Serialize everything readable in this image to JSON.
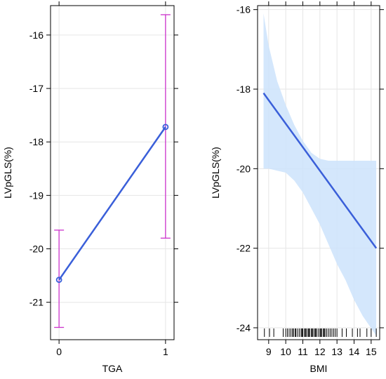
{
  "chart_data": [
    {
      "type": "line",
      "xlabel": "TGA",
      "ylabel": "LVpGLS(%)",
      "x_ticks": [
        "0",
        "1"
      ],
      "y_ticks": [
        "-16",
        "-17",
        "-18",
        "-19",
        "-20",
        "-21"
      ],
      "ylim": [
        -21.7,
        -15.45
      ],
      "grid": true,
      "points": [
        {
          "x": 0,
          "y": -20.58,
          "lower": -21.47,
          "upper": -19.65
        },
        {
          "x": 1,
          "y": -17.72,
          "lower": -19.8,
          "upper": -15.62
        }
      ],
      "colors": {
        "line": "#3a5fd9",
        "errorbar": "#cc33cc"
      }
    },
    {
      "type": "line",
      "xlabel": "BMI",
      "ylabel": "LVpGLS(%)",
      "x_ticks": [
        "9",
        "10",
        "11",
        "12",
        "13",
        "14",
        "15"
      ],
      "y_ticks": [
        "-16",
        "-18",
        "-20",
        "-22",
        "-24"
      ],
      "xlim": [
        8.35,
        15.5
      ],
      "ylim": [
        -24.3,
        -15.9
      ],
      "grid": true,
      "fit": {
        "x": [
          8.7,
          15.3
        ],
        "y": [
          -18.1,
          -22.0
        ]
      },
      "band_upper": [
        [
          8.7,
          -16.1
        ],
        [
          9.0,
          -16.9
        ],
        [
          9.5,
          -17.8
        ],
        [
          10.0,
          -18.4
        ],
        [
          10.5,
          -18.9
        ],
        [
          11.0,
          -19.3
        ],
        [
          11.5,
          -19.6
        ],
        [
          12.0,
          -19.75
        ],
        [
          12.5,
          -19.8
        ],
        [
          13.0,
          -19.8
        ],
        [
          13.5,
          -19.8
        ],
        [
          14.0,
          -19.8
        ],
        [
          14.5,
          -19.8
        ],
        [
          15.3,
          -19.8
        ]
      ],
      "band_lower": [
        [
          8.7,
          -20.0
        ],
        [
          9.0,
          -20.0
        ],
        [
          9.5,
          -20.05
        ],
        [
          10.0,
          -20.1
        ],
        [
          10.5,
          -20.3
        ],
        [
          11.0,
          -20.6
        ],
        [
          11.5,
          -21.0
        ],
        [
          12.0,
          -21.4
        ],
        [
          12.5,
          -21.9
        ],
        [
          13.0,
          -22.4
        ],
        [
          13.5,
          -22.8
        ],
        [
          14.0,
          -23.3
        ],
        [
          14.5,
          -23.7
        ],
        [
          15.3,
          -24.2
        ]
      ],
      "rug": [
        8.75,
        9.05,
        9.3,
        9.85,
        10.0,
        10.1,
        10.2,
        10.3,
        10.4,
        10.45,
        10.55,
        10.6,
        10.7,
        10.8,
        10.9,
        10.95,
        11.0,
        11.1,
        11.15,
        11.2,
        11.3,
        11.35,
        11.4,
        11.5,
        11.55,
        11.6,
        11.7,
        11.75,
        11.8,
        11.9,
        12.0,
        12.05,
        12.1,
        12.2,
        12.25,
        12.3,
        12.4,
        12.5,
        12.6,
        12.7,
        12.8,
        12.9,
        13.0,
        13.3,
        13.55,
        13.9,
        14.2,
        14.35,
        14.75,
        15.0,
        15.3
      ],
      "colors": {
        "line": "#3a5fd9",
        "band": "#cce3fb"
      }
    }
  ]
}
